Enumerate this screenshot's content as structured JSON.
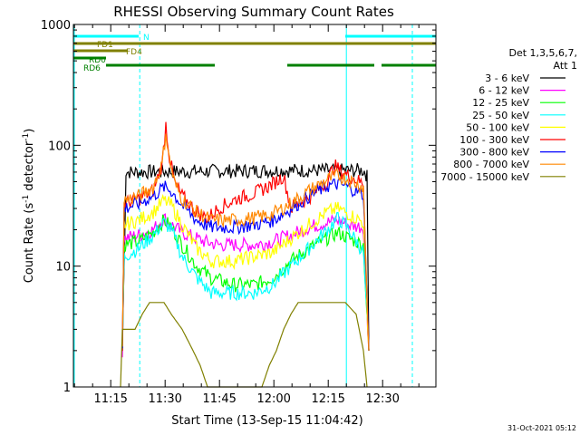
{
  "chart_data": {
    "type": "line",
    "title": "RHESSI Observing Summary Count Rates",
    "xlabel": "Start Time (13-Sep-15 11:04:42)",
    "ylabel_main": "Count Rate (s",
    "ylabel_exp1": "-1",
    "ylabel_mid": " detector",
    "ylabel_exp2": "-1",
    "ylabel_end": ")",
    "yscale": "log",
    "ylim": [
      1,
      1000
    ],
    "xlim_minutes": [
      0,
      100
    ],
    "x_ticks": [
      {
        "label": "11:15",
        "t": 10.3
      },
      {
        "label": "11:30",
        "t": 25.3
      },
      {
        "label": "11:45",
        "t": 40.3
      },
      {
        "label": "12:00",
        "t": 55.3
      },
      {
        "label": "12:15",
        "t": 70.3
      },
      {
        "label": "12:30",
        "t": 85.3
      }
    ],
    "y_ticks": [
      {
        "label": "1",
        "v": 1
      },
      {
        "label": "10",
        "v": 10
      },
      {
        "label": "100",
        "v": 100
      },
      {
        "label": "1000",
        "v": 1000
      }
    ],
    "legend_header": [
      "Det 1,3,5,6,7,",
      "Att 1"
    ],
    "legend_position": "right",
    "series": [
      {
        "name": "3 - 6 keV",
        "color": "#000000",
        "points": [
          [
            13.5,
            2
          ],
          [
            14.5,
            60
          ],
          [
            60,
            62
          ],
          [
            80,
            62
          ],
          [
            80.5,
            60
          ],
          [
            81,
            55
          ],
          [
            81.5,
            2
          ]
        ]
      },
      {
        "name": "6 - 12 keV",
        "color": "#ff00ff",
        "points": [
          [
            13.5,
            2
          ],
          [
            14,
            17
          ],
          [
            18,
            18
          ],
          [
            22,
            20
          ],
          [
            25,
            25
          ],
          [
            27,
            22
          ],
          [
            30,
            19
          ],
          [
            36,
            16
          ],
          [
            40,
            15
          ],
          [
            44,
            15
          ],
          [
            50,
            15
          ],
          [
            55,
            16
          ],
          [
            60,
            18
          ],
          [
            65,
            21
          ],
          [
            70,
            23
          ],
          [
            73,
            24
          ],
          [
            76,
            22
          ],
          [
            80,
            21
          ],
          [
            81.5,
            2
          ]
        ]
      },
      {
        "name": "12 - 25 keV",
        "color": "#00ff00",
        "points": [
          [
            13.5,
            2
          ],
          [
            14,
            15
          ],
          [
            18,
            16
          ],
          [
            22,
            19
          ],
          [
            25,
            24
          ],
          [
            27,
            21
          ],
          [
            30,
            15
          ],
          [
            34,
            10
          ],
          [
            38,
            8
          ],
          [
            44,
            7
          ],
          [
            50,
            7
          ],
          [
            55,
            8
          ],
          [
            60,
            11
          ],
          [
            65,
            14
          ],
          [
            70,
            17
          ],
          [
            73,
            19
          ],
          [
            76,
            17
          ],
          [
            80,
            15
          ],
          [
            81.5,
            2
          ]
        ]
      },
      {
        "name": "25 - 50 keV",
        "color": "#00ffff",
        "points": [
          [
            13.5,
            2
          ],
          [
            14,
            12
          ],
          [
            18,
            14
          ],
          [
            22,
            18
          ],
          [
            25,
            23
          ],
          [
            27,
            20
          ],
          [
            30,
            12
          ],
          [
            34,
            8
          ],
          [
            38,
            6
          ],
          [
            44,
            6
          ],
          [
            50,
            6
          ],
          [
            55,
            7
          ],
          [
            60,
            10
          ],
          [
            65,
            14
          ],
          [
            70,
            20
          ],
          [
            73,
            25
          ],
          [
            76,
            20
          ],
          [
            80,
            13
          ],
          [
            81.5,
            2
          ]
        ]
      },
      {
        "name": "50 - 100 keV",
        "color": "#ffff00",
        "points": [
          [
            13.5,
            2
          ],
          [
            14,
            22
          ],
          [
            18,
            24
          ],
          [
            22,
            28
          ],
          [
            25,
            35
          ],
          [
            27,
            32
          ],
          [
            30,
            22
          ],
          [
            34,
            14
          ],
          [
            38,
            11
          ],
          [
            44,
            11
          ],
          [
            50,
            12
          ],
          [
            55,
            13
          ],
          [
            60,
            17
          ],
          [
            65,
            22
          ],
          [
            70,
            28
          ],
          [
            73,
            30
          ],
          [
            76,
            27
          ],
          [
            80,
            23
          ],
          [
            81.5,
            2
          ]
        ]
      },
      {
        "name": "100 - 300 keV",
        "color": "#ff0000",
        "points": [
          [
            13.5,
            2
          ],
          [
            14,
            33
          ],
          [
            18,
            36
          ],
          [
            22,
            42
          ],
          [
            24.5,
            70
          ],
          [
            25.5,
            150
          ],
          [
            26.5,
            80
          ],
          [
            28,
            48
          ],
          [
            30,
            38
          ],
          [
            34,
            28
          ],
          [
            37,
            25
          ],
          [
            40,
            30
          ],
          [
            45,
            36
          ],
          [
            50,
            40
          ],
          [
            55,
            48
          ],
          [
            58,
            56
          ],
          [
            60,
            30
          ],
          [
            65,
            37
          ],
          [
            70,
            50
          ],
          [
            72,
            68
          ],
          [
            74,
            60
          ],
          [
            78,
            52
          ],
          [
            80,
            48
          ],
          [
            81.5,
            2
          ]
        ]
      },
      {
        "name": "300 - 800 keV",
        "color": "#0000ff",
        "points": [
          [
            13.5,
            2
          ],
          [
            14,
            30
          ],
          [
            18,
            33
          ],
          [
            22,
            38
          ],
          [
            25,
            45
          ],
          [
            27,
            42
          ],
          [
            30,
            32
          ],
          [
            34,
            24
          ],
          [
            38,
            21
          ],
          [
            44,
            21
          ],
          [
            50,
            22
          ],
          [
            55,
            24
          ],
          [
            60,
            30
          ],
          [
            65,
            38
          ],
          [
            70,
            46
          ],
          [
            73,
            48
          ],
          [
            76,
            45
          ],
          [
            80,
            39
          ],
          [
            81.5,
            2
          ]
        ]
      },
      {
        "name": "800 - 7000 keV",
        "color": "#ff8800",
        "points": [
          [
            13.5,
            2
          ],
          [
            14,
            35
          ],
          [
            18,
            38
          ],
          [
            22,
            45
          ],
          [
            24.5,
            70
          ],
          [
            25.5,
            130
          ],
          [
            26.5,
            75
          ],
          [
            28,
            48
          ],
          [
            30,
            36
          ],
          [
            34,
            28
          ],
          [
            38,
            24
          ],
          [
            44,
            24
          ],
          [
            50,
            25
          ],
          [
            55,
            27
          ],
          [
            60,
            33
          ],
          [
            65,
            42
          ],
          [
            70,
            52
          ],
          [
            73,
            56
          ],
          [
            76,
            52
          ],
          [
            80,
            45
          ],
          [
            81.5,
            2
          ]
        ]
      },
      {
        "name": "7000 - 15000 keV",
        "color": "#808000",
        "points": [
          [
            13,
            1
          ],
          [
            13.5,
            3
          ],
          [
            17,
            3
          ],
          [
            19,
            4
          ],
          [
            21,
            5
          ],
          [
            25,
            5
          ],
          [
            27,
            4
          ],
          [
            30,
            3
          ],
          [
            33,
            2
          ],
          [
            35,
            1.5
          ],
          [
            37,
            1
          ],
          [
            52,
            1
          ],
          [
            54,
            1.5
          ],
          [
            56,
            2
          ],
          [
            58,
            3
          ],
          [
            60,
            4
          ],
          [
            62,
            5
          ],
          [
            70,
            5
          ],
          [
            75,
            5
          ],
          [
            78,
            4
          ],
          [
            80,
            2
          ],
          [
            81,
            1
          ]
        ]
      }
    ],
    "annotation_bars": [
      {
        "label": "N",
        "color": "#00ffff",
        "segments": [
          [
            0,
            18
          ],
          [
            75,
            100
          ]
        ]
      },
      {
        "label": "FD1",
        "color": "#808000",
        "segments": [
          [
            0,
            100
          ]
        ]
      },
      {
        "label": "FD4",
        "color": "#808000",
        "segments": [
          [
            0,
            15
          ]
        ]
      },
      {
        "label": "RD0",
        "color": "#008000",
        "segments": [
          [
            0,
            9
          ]
        ]
      },
      {
        "label": "RD6",
        "color": "#008000",
        "segments": [
          [
            9,
            39
          ],
          [
            59,
            83
          ],
          [
            85,
            100
          ]
        ]
      }
    ],
    "night_markers": [
      {
        "t": 18.3,
        "style": "dashed"
      },
      {
        "t": 75.3,
        "style": "solid"
      },
      {
        "t": 93.5,
        "style": "dashed"
      }
    ],
    "footer_date": "31-Oct-2021 05:12"
  }
}
